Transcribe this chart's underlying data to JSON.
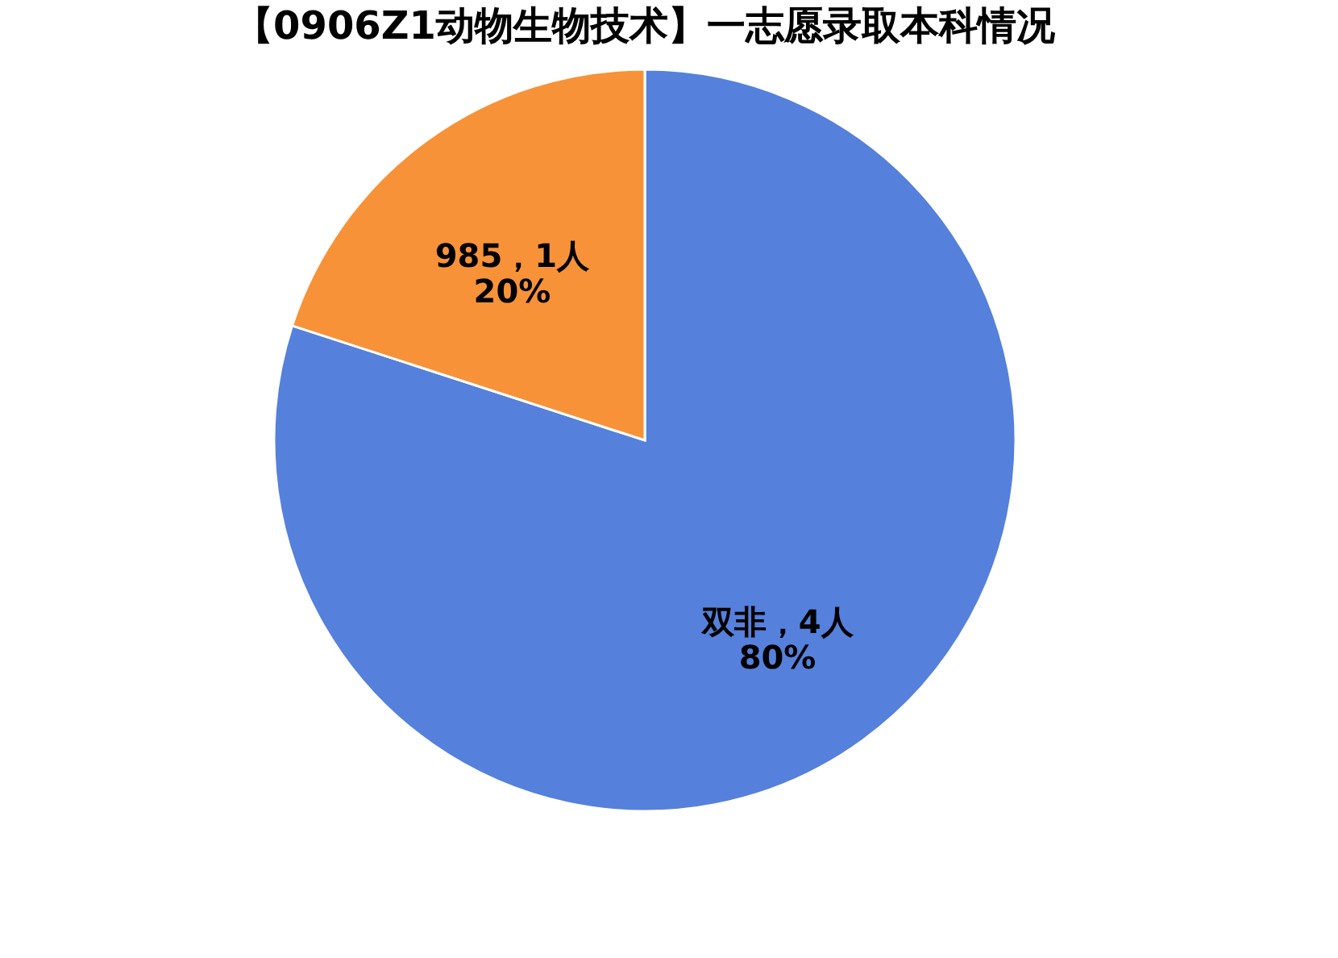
{
  "chart_data": {
    "type": "pie",
    "title": "【0906Z1动物生物技术】一志愿录取本科情况",
    "categories": [
      "双非",
      "985"
    ],
    "values": [
      4,
      1
    ],
    "colors": [
      "#5580dc",
      "#f79239"
    ],
    "value_labels": [
      "，4人\n80%",
      "，1人\n20%"
    ],
    "legend": false
  }
}
